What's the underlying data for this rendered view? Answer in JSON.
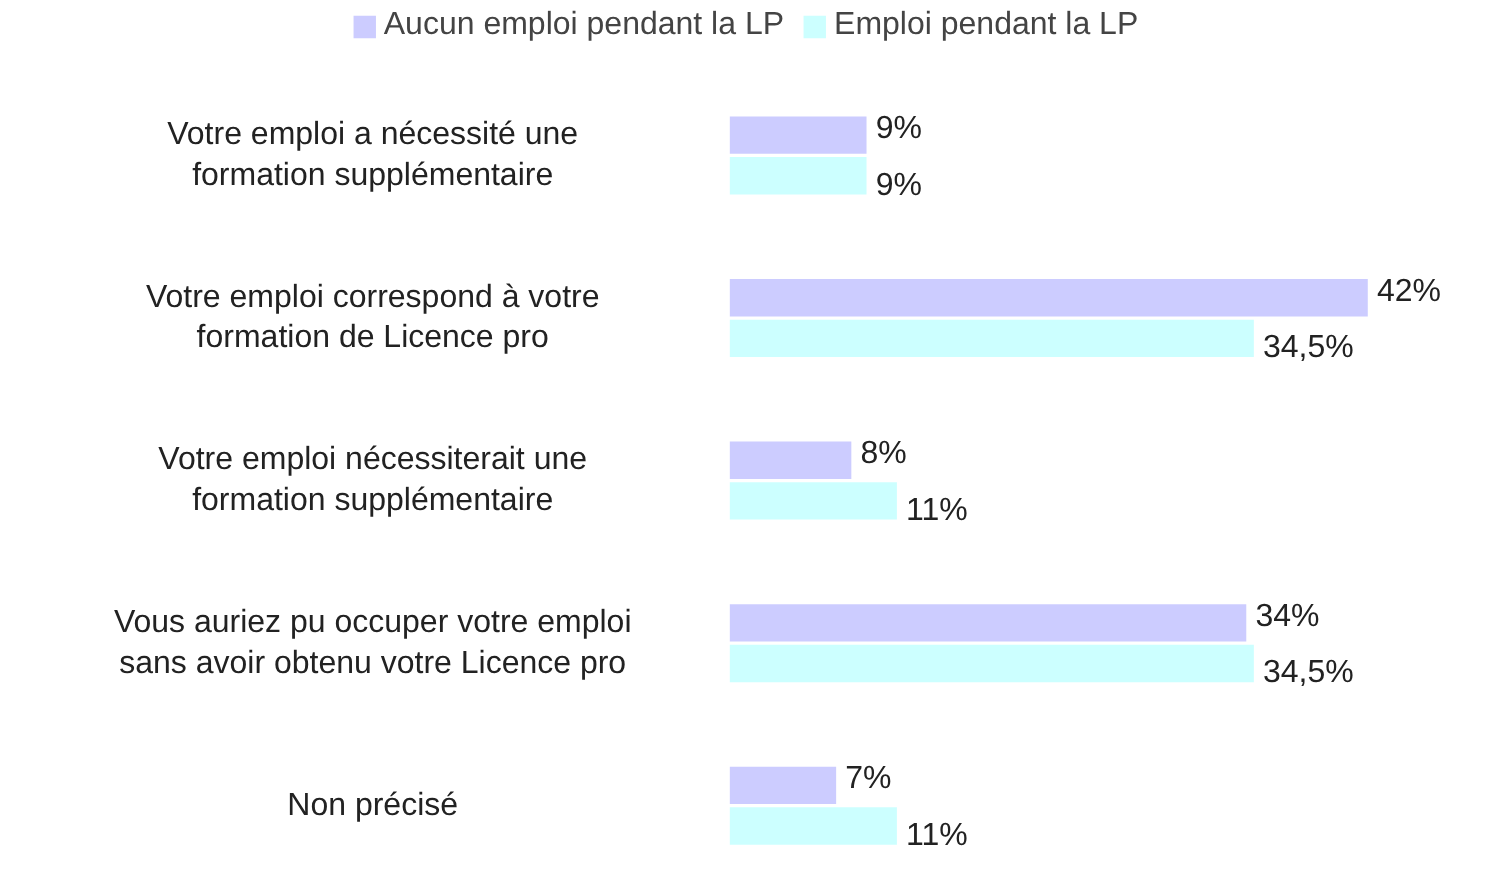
{
  "chart_data": {
    "type": "bar",
    "orientation": "horizontal",
    "categories": [
      "Votre emploi a nécessité une formation supplémentaire",
      "Votre emploi correspond à votre formation de Licence pro",
      "Votre emploi nécessiterait une formation supplémentaire",
      "Vous auriez pu occuper votre emploi sans avoir obtenu votre Licence pro",
      "Non précisé"
    ],
    "series": [
      {
        "name": "Aucun emploi pendant la LP",
        "color": "#ccccff",
        "values": [
          9,
          42,
          8,
          34,
          7
        ],
        "value_labels": [
          "9%",
          "42%",
          "8%",
          "34%",
          "7%"
        ]
      },
      {
        "name": "Emploi pendant la LP",
        "color": "#ccffff",
        "values": [
          9,
          34.5,
          11,
          34.5,
          11
        ],
        "value_labels": [
          "9%",
          "34,5%",
          "11%",
          "34,5%",
          "11%"
        ]
      }
    ],
    "legend": "top"
  }
}
